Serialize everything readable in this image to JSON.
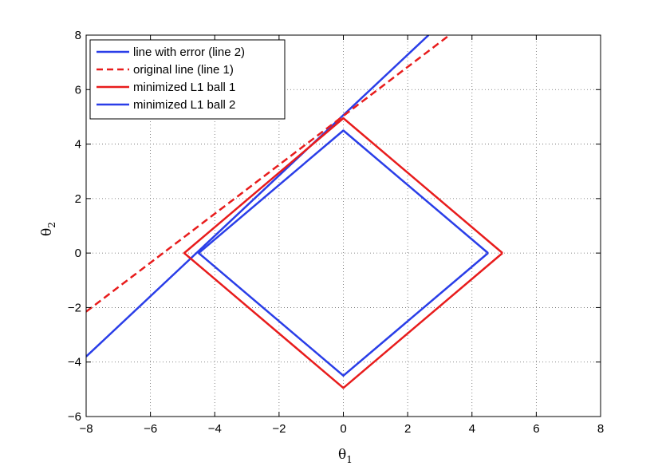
{
  "chart_data": {
    "type": "line",
    "xlabel": "θ",
    "xlabel_sub": "1",
    "ylabel": "θ",
    "ylabel_sub": "2",
    "xlim": [
      -8,
      8
    ],
    "ylim": [
      -6,
      8
    ],
    "xticks": [
      -8,
      -6,
      -4,
      -2,
      0,
      2,
      4,
      6,
      8
    ],
    "yticks": [
      -6,
      -4,
      -2,
      0,
      2,
      4,
      6,
      8
    ],
    "xtick_labels": [
      "−8",
      "−6",
      "−4",
      "−2",
      "0",
      "2",
      "4",
      "6",
      "8"
    ],
    "ytick_labels": [
      "−6",
      "−4",
      "−2",
      "0",
      "2",
      "4",
      "6",
      "8"
    ],
    "grid": true,
    "legend_position": "top-left",
    "series": [
      {
        "name": "line with error (line 2)",
        "color": "#2a3ee8",
        "dash": "solid",
        "x": [
          -8,
          2.65
        ],
        "y": [
          -3.8,
          8
        ]
      },
      {
        "name": "original line (line 1)",
        "color": "#e81c1c",
        "dash": "dashed",
        "x": [
          -8,
          3.3
        ],
        "y": [
          -2.15,
          8
        ]
      },
      {
        "name": "minimized L1 ball 1",
        "color": "#e81c1c",
        "dash": "solid",
        "x": [
          4.95,
          0,
          -4.95,
          0,
          4.95
        ],
        "y": [
          0,
          4.95,
          0,
          -4.95,
          0
        ]
      },
      {
        "name": "minimized L1 ball 2",
        "color": "#2a3ee8",
        "dash": "solid",
        "x": [
          4.5,
          0,
          -4.5,
          0,
          4.5
        ],
        "y": [
          0,
          4.5,
          0,
          -4.5,
          0
        ]
      }
    ]
  }
}
